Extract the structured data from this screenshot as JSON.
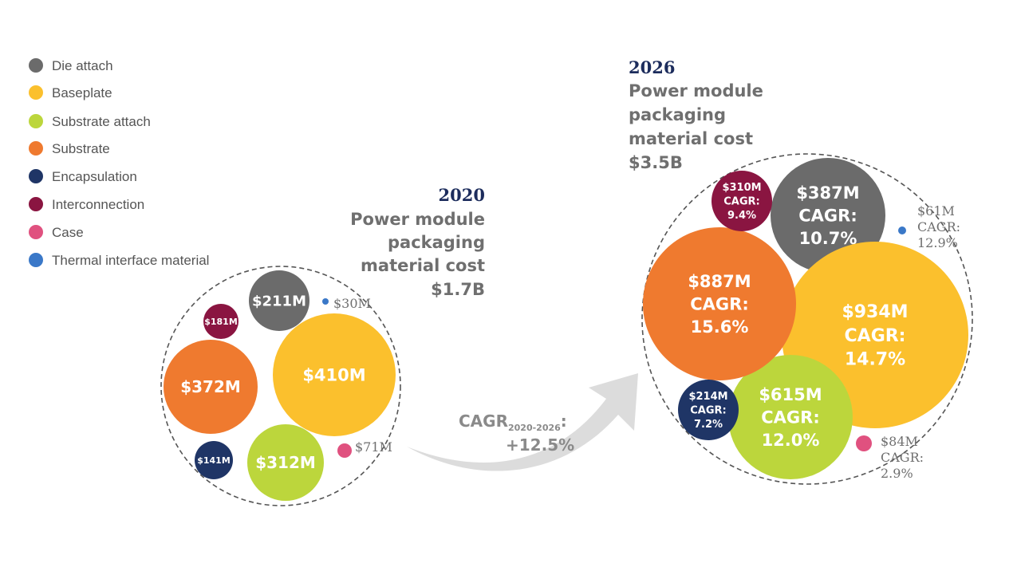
{
  "legend": [
    {
      "label": "Die attach",
      "color": "#6b6b6b"
    },
    {
      "label": "Baseplate",
      "color": "#fbc02d"
    },
    {
      "label": "Substrate attach",
      "color": "#bcd63c"
    },
    {
      "label": "Substrate",
      "color": "#ef7a2f"
    },
    {
      "label": "Encapsulation",
      "color": "#1f3566"
    },
    {
      "label": "Interconnection",
      "color": "#8a1541"
    },
    {
      "label": "Case",
      "color": "#e0517f"
    },
    {
      "label": "Thermal interface material",
      "color": "#3a78c8"
    }
  ],
  "heading_2020": {
    "year": "2020",
    "line1": "Power module",
    "line2": "packaging",
    "line3": "material cost",
    "total": "$1.7B"
  },
  "heading_2026": {
    "year": "2026",
    "line1": "Power module",
    "line2": "packaging",
    "line3": "material cost",
    "total": "$3.5B"
  },
  "cagr_arrow": {
    "label": "CAGR",
    "sub": "2020-2026",
    "colon": ":",
    "value": "+12.5%"
  },
  "chart_data": {
    "type": "bubble",
    "unit": "$M",
    "panels": [
      {
        "year": "2020",
        "total": "$1.7B",
        "items": [
          {
            "category": "Die attach",
            "value": 211,
            "label": "$211M"
          },
          {
            "category": "Baseplate",
            "value": 410,
            "label": "$410M"
          },
          {
            "category": "Substrate attach",
            "value": 312,
            "label": "$312M"
          },
          {
            "category": "Substrate",
            "value": 372,
            "label": "$372M"
          },
          {
            "category": "Encapsulation",
            "value": 141,
            "label": "$141M"
          },
          {
            "category": "Interconnection",
            "value": 181,
            "label": "$181M"
          },
          {
            "category": "Case",
            "value": 71,
            "label": "$71M"
          },
          {
            "category": "Thermal interface material",
            "value": 30,
            "label": "$30M"
          }
        ]
      },
      {
        "year": "2026",
        "total": "$3.5B",
        "items": [
          {
            "category": "Die attach",
            "value": 387,
            "label": "$387M",
            "cagr_label": "CAGR:",
            "cagr": "10.7%"
          },
          {
            "category": "Baseplate",
            "value": 934,
            "label": "$934M",
            "cagr_label": "CAGR:",
            "cagr": "14.7%"
          },
          {
            "category": "Substrate attach",
            "value": 615,
            "label": "$615M",
            "cagr_label": "CAGR:",
            "cagr": "12.0%"
          },
          {
            "category": "Substrate",
            "value": 887,
            "label": "$887M",
            "cagr_label": "CAGR:",
            "cagr": "15.6%"
          },
          {
            "category": "Encapsulation",
            "value": 214,
            "label": "$214M",
            "cagr_label": "CAGR:",
            "cagr": "7.2%"
          },
          {
            "category": "Interconnection",
            "value": 310,
            "label": "$310M",
            "cagr_label": "CAGR:",
            "cagr": "9.4%"
          },
          {
            "category": "Case",
            "value": 84,
            "label": "$84M",
            "cagr_label": "CAGR:",
            "cagr": "2.9%"
          },
          {
            "category": "Thermal interface material",
            "value": 61,
            "label": "$61M",
            "cagr_label": "CAGR:",
            "cagr": "12.9%"
          }
        ]
      }
    ]
  }
}
